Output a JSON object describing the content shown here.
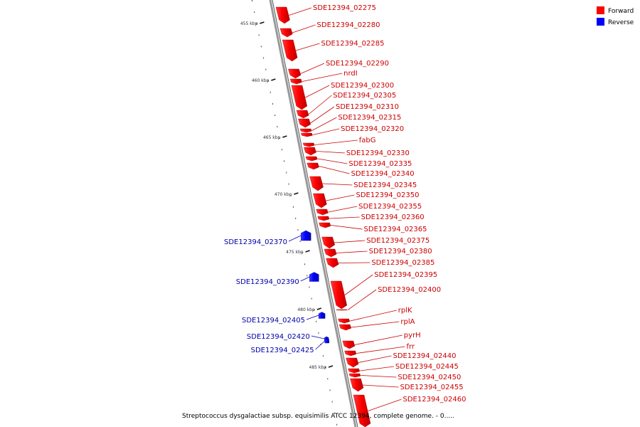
{
  "legend": {
    "forward_label": "Forward",
    "reverse_label": "Reverse",
    "forward_color": "#ff0000",
    "reverse_color": "#0000ff"
  },
  "footer": {
    "caption": "Streptococcus dysgalactiae subsp. equisimilis ATCC 12394, complete genome. - 0....."
  },
  "colors": {
    "forward_label_color": "#cc0000",
    "reverse_label_color": "#0000aa",
    "axis": "#999999",
    "tick": "#111111"
  },
  "ticks": [
    "455 kbp",
    "460 kbp",
    "465 kbp",
    "470 kbp",
    "475 kbp",
    "480 kbp",
    "485 kbp"
  ],
  "forward_genes": [
    "SDE12394_02275",
    "SDE12394_02280",
    "SDE12394_02285",
    "SDE12394_02290",
    "nrdI",
    "SDE12394_02300",
    "SDE12394_02305",
    "SDE12394_02310",
    "SDE12394_02315",
    "SDE12394_02320",
    "fabG",
    "SDE12394_02330",
    "SDE12394_02335",
    "SDE12394_02340",
    "SDE12394_02345",
    "SDE12394_02350",
    "SDE12394_02355",
    "SDE12394_02360",
    "SDE12394_02365",
    "SDE12394_02375",
    "SDE12394_02380",
    "SDE12394_02385",
    "SDE12394_02395",
    "SDE12394_02400",
    "rplK",
    "rplA",
    "pyrH",
    "frr",
    "SDE12394_02440",
    "SDE12394_02445",
    "SDE12394_02450",
    "SDE12394_02455",
    "SDE12394_02460"
  ],
  "reverse_genes": [
    "SDE12394_02370",
    "SDE12394_02390",
    "SDE12394_02405",
    "SDE12394_02420",
    "SDE12394_02425"
  ]
}
